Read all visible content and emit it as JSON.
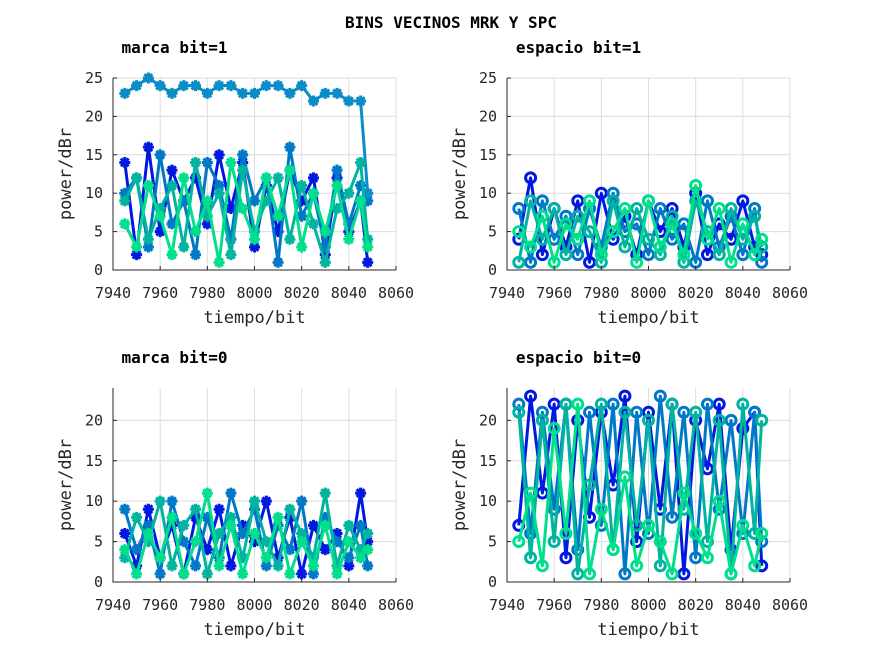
{
  "title": "BINS VECINOS MRK Y SPC",
  "colors": [
    "#0019e0",
    "#0078c8",
    "#00b4a0",
    "#00e08c"
  ],
  "chart_data": [
    {
      "type": "line",
      "title": "marca bit=1",
      "xlabel": "tiempo/bit",
      "ylabel": "power/dBr",
      "xlim": [
        7940,
        8060
      ],
      "ylim": [
        0,
        25
      ],
      "xticks": [
        "7940",
        "7960",
        "7980",
        "8000",
        "8020",
        "8040",
        "8060"
      ],
      "yticks": [
        "0",
        "5",
        "10",
        "15",
        "20",
        "25"
      ],
      "marker": "asterisk",
      "x": [
        7945,
        7950,
        7955,
        7960,
        7965,
        7970,
        7975,
        7980,
        7985,
        7990,
        7995,
        8000,
        8005,
        8010,
        8015,
        8020,
        8025,
        8030,
        8035,
        8040,
        8045,
        8048
      ],
      "series": [
        {
          "color": "#0019e0",
          "values": [
            14,
            2,
            16,
            5,
            13,
            9,
            12,
            6,
            15,
            8,
            14,
            3,
            11,
            5,
            13,
            9,
            12,
            2,
            12,
            5,
            9,
            1
          ]
        },
        {
          "color": "#0078c8",
          "values": [
            10,
            12,
            3,
            15,
            6,
            9,
            2,
            14,
            11,
            4,
            15,
            9,
            12,
            1,
            16,
            7,
            10,
            3,
            13,
            6,
            11,
            9
          ]
        },
        {
          "color": "#0a8cc8",
          "values": [
            23,
            24,
            25,
            24,
            23,
            24,
            24,
            23,
            24,
            24,
            23,
            23,
            24,
            24,
            23,
            24,
            22,
            23,
            23,
            22,
            22,
            10
          ]
        },
        {
          "color": "#00b4a0",
          "values": [
            9,
            12,
            4,
            8,
            11,
            3,
            14,
            7,
            10,
            2,
            13,
            5,
            9,
            12,
            4,
            11,
            6,
            1,
            8,
            10,
            14,
            4
          ]
        },
        {
          "color": "#00e08c",
          "values": [
            6,
            3,
            11,
            7,
            2,
            12,
            5,
            9,
            1,
            14,
            8,
            4,
            12,
            7,
            13,
            3,
            10,
            5,
            11,
            4,
            9,
            3
          ]
        }
      ]
    },
    {
      "type": "line",
      "title": "espacio bit=1",
      "xlabel": "tiempo/bit",
      "ylabel": "power/dBr",
      "xlim": [
        7940,
        8060
      ],
      "ylim": [
        0,
        25
      ],
      "xticks": [
        "7940",
        "7960",
        "7980",
        "8000",
        "8020",
        "8040",
        "8060"
      ],
      "yticks": [
        "0",
        "5",
        "10",
        "15",
        "20",
        "25"
      ],
      "marker": "circle",
      "x": [
        7945,
        7950,
        7955,
        7960,
        7965,
        7970,
        7975,
        7980,
        7985,
        7990,
        7995,
        8000,
        8005,
        8010,
        8015,
        8020,
        8025,
        8030,
        8035,
        8040,
        8045,
        8048
      ],
      "series": [
        {
          "color": "#0019e0",
          "values": [
            4,
            12,
            2,
            8,
            3,
            9,
            1,
            10,
            4,
            7,
            2,
            9,
            5,
            8,
            3,
            10,
            2,
            6,
            4,
            9,
            3,
            2
          ]
        },
        {
          "color": "#0078c8",
          "values": [
            8,
            1,
            9,
            4,
            7,
            2,
            8,
            3,
            10,
            5,
            6,
            2,
            8,
            4,
            6,
            1,
            9,
            3,
            7,
            2,
            8,
            1
          ]
        },
        {
          "color": "#00b4a0",
          "values": [
            1,
            9,
            4,
            8,
            2,
            7,
            5,
            1,
            9,
            3,
            8,
            4,
            2,
            7,
            1,
            9,
            5,
            2,
            8,
            4,
            7,
            3
          ]
        },
        {
          "color": "#00e08c",
          "values": [
            5,
            3,
            7,
            1,
            6,
            4,
            9,
            2,
            5,
            8,
            1,
            9,
            3,
            6,
            2,
            11,
            4,
            8,
            1,
            6,
            2,
            4
          ]
        }
      ]
    },
    {
      "type": "line",
      "title": "marca bit=0",
      "xlabel": "tiempo/bit",
      "ylabel": "power/dBr",
      "xlim": [
        7940,
        8060
      ],
      "ylim": [
        0,
        24
      ],
      "xticks": [
        "7940",
        "7960",
        "7980",
        "8000",
        "8020",
        "8040",
        "8060"
      ],
      "yticks": [
        "0",
        "5",
        "10",
        "15",
        "20"
      ],
      "marker": "asterisk",
      "x": [
        7945,
        7950,
        7955,
        7960,
        7965,
        7970,
        7975,
        7980,
        7985,
        7990,
        7995,
        8000,
        8005,
        8010,
        8015,
        8020,
        8025,
        8030,
        8035,
        8040,
        8045,
        8048
      ],
      "series": [
        {
          "color": "#0019e0",
          "values": [
            6,
            2,
            9,
            3,
            7,
            1,
            8,
            4,
            9,
            2,
            7,
            5,
            10,
            3,
            8,
            1,
            7,
            4,
            6,
            2,
            11,
            5
          ]
        },
        {
          "color": "#0078c8",
          "values": [
            9,
            4,
            7,
            1,
            10,
            5,
            2,
            8,
            3,
            11,
            6,
            9,
            2,
            7,
            4,
            10,
            1,
            8,
            5,
            3,
            7,
            2
          ]
        },
        {
          "color": "#00b4a0",
          "values": [
            3,
            8,
            5,
            10,
            2,
            7,
            9,
            1,
            6,
            8,
            3,
            10,
            5,
            2,
            9,
            6,
            3,
            11,
            2,
            7,
            4,
            6
          ]
        },
        {
          "color": "#00e08c",
          "values": [
            4,
            1,
            6,
            3,
            8,
            1,
            5,
            11,
            2,
            7,
            1,
            6,
            3,
            8,
            1,
            5,
            2,
            7,
            1,
            5,
            3,
            4
          ]
        }
      ]
    },
    {
      "type": "line",
      "title": "espacio bit=0",
      "xlabel": "tiempo/bit",
      "ylabel": "power/dBr",
      "xlim": [
        7940,
        8060
      ],
      "ylim": [
        0,
        24
      ],
      "xticks": [
        "7940",
        "7960",
        "7980",
        "8000",
        "8020",
        "8040",
        "8060"
      ],
      "yticks": [
        "0",
        "5",
        "10",
        "15",
        "20"
      ],
      "marker": "circle",
      "x": [
        7945,
        7950,
        7955,
        7960,
        7965,
        7970,
        7975,
        7980,
        7985,
        7990,
        7995,
        8000,
        8005,
        8010,
        8015,
        8020,
        8025,
        8030,
        8035,
        8040,
        8045,
        8048
      ],
      "series": [
        {
          "color": "#0019e0",
          "values": [
            7,
            23,
            11,
            22,
            3,
            20,
            8,
            21,
            12,
            23,
            5,
            21,
            9,
            22,
            1,
            20,
            14,
            22,
            4,
            19,
            21,
            2
          ]
        },
        {
          "color": "#0078c8",
          "values": [
            22,
            6,
            21,
            9,
            22,
            4,
            21,
            7,
            22,
            1,
            21,
            6,
            23,
            8,
            21,
            3,
            22,
            9,
            20,
            6,
            21,
            5
          ]
        },
        {
          "color": "#00b4a0",
          "values": [
            21,
            3,
            20,
            5,
            22,
            1,
            12,
            22,
            4,
            21,
            7,
            20,
            2,
            22,
            9,
            21,
            5,
            20,
            1,
            22,
            6,
            20
          ]
        },
        {
          "color": "#00e08c",
          "values": [
            5,
            11,
            2,
            19,
            6,
            22,
            1,
            9,
            4,
            13,
            2,
            7,
            5,
            1,
            11,
            6,
            3,
            10,
            1,
            7,
            2,
            6
          ]
        }
      ]
    }
  ]
}
